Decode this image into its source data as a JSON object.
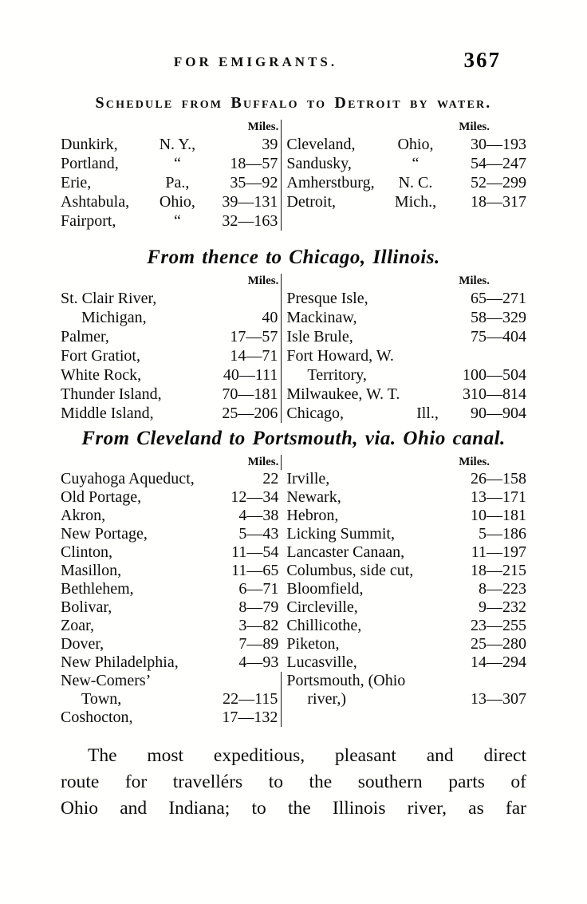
{
  "header": {
    "running_title": "FOR EMIGRANTS.",
    "page_number": "367"
  },
  "sections": [
    {
      "title": "Schedule from Buffalo to Detroit by water.",
      "miles_left": "Miles.",
      "miles_right": "Miles.",
      "rows": [
        {
          "l": {
            "place": "Dunkirk,",
            "state": "N. Y.,",
            "miles": "39"
          },
          "r": {
            "place": "Cleveland,",
            "state": "Ohio,",
            "miles": "30—193"
          }
        },
        {
          "l": {
            "place": "Portland,",
            "state": "“",
            "miles": "18—57"
          },
          "r": {
            "place": "Sandusky,",
            "state": "“",
            "miles": "54—247"
          }
        },
        {
          "l": {
            "place": "Erie,",
            "state": "Pa.,",
            "miles": "35—92"
          },
          "r": {
            "place": "Amherstburg,",
            "state": "N. C.",
            "miles": "52—299"
          }
        },
        {
          "l": {
            "place": "Ashtabula,",
            "state": "Ohio,",
            "miles": "39—131"
          },
          "r": {
            "place": "Detroit,",
            "state": "Mich.,",
            "miles": "18—317"
          }
        },
        {
          "l": {
            "place": "Fairport,",
            "state": "“",
            "miles": "32—163"
          },
          "r": {}
        }
      ]
    },
    {
      "title": "From thence to Chicago, Illinois.",
      "miles_left": "Miles.",
      "miles_right": "Miles.",
      "rows": [
        {
          "l": {
            "place": "St. Clair River,",
            "miles": ""
          },
          "r": {
            "place": "Presque Isle,",
            "miles": "65—271"
          }
        },
        {
          "l": {
            "place": "Michigan,",
            "indent": true,
            "miles": "40"
          },
          "r": {
            "place": "Mackinaw,",
            "miles": "58—329"
          }
        },
        {
          "l": {
            "place": "Palmer,",
            "miles": "17—57"
          },
          "r": {
            "place": "Isle Brule,",
            "miles": "75—404"
          }
        },
        {
          "l": {
            "place": "Fort Gratiot,",
            "miles": "14—71"
          },
          "r": {
            "place": "Fort Howard, W.",
            "miles": ""
          }
        },
        {
          "l": {
            "place": "White Rock,",
            "miles": "40—111"
          },
          "r": {
            "place": "Territory,",
            "indent": true,
            "miles": "100—504"
          }
        },
        {
          "l": {
            "place": "Thunder Island,",
            "miles": "70—181"
          },
          "r": {
            "place": "Milwaukee, W. T.",
            "miles": "310—814"
          }
        },
        {
          "l": {
            "place": "Middle Island,",
            "miles": "25—206"
          },
          "r": {
            "place": "Chicago,",
            "state": "Ill.,",
            "miles": "90—904"
          }
        }
      ]
    },
    {
      "title": "From Cleveland to Portsmouth, via. Ohio canal.",
      "miles_left": "Miles.",
      "miles_right": "Miles.",
      "rows": [
        {
          "l": {
            "place": "Cuyahoga Aqueduct,",
            "miles": "22"
          },
          "r": {
            "place": "Irville,",
            "miles": "26—158"
          }
        },
        {
          "l": {
            "place": "Old Portage,",
            "miles": "12—34"
          },
          "r": {
            "place": "Newark,",
            "miles": "13—171"
          }
        },
        {
          "l": {
            "place": "Akron,",
            "miles": "4—38"
          },
          "r": {
            "place": "Hebron,",
            "miles": "10—181"
          }
        },
        {
          "l": {
            "place": "New Portage,",
            "miles": "5—43"
          },
          "r": {
            "place": "Licking Summit,",
            "miles": "5—186"
          }
        },
        {
          "l": {
            "place": "Clinton,",
            "miles": "11—54"
          },
          "r": {
            "place": "Lancaster Canaan,",
            "miles": "11—197"
          }
        },
        {
          "l": {
            "place": "Masillon,",
            "miles": "11—65"
          },
          "r": {
            "place": "Columbus, side cut,",
            "miles": "18—215"
          }
        },
        {
          "l": {
            "place": "Bethlehem,",
            "miles": "6—71"
          },
          "r": {
            "place": "Bloomfield,",
            "miles": "8—223"
          }
        },
        {
          "l": {
            "place": "Bolivar,",
            "miles": "8—79"
          },
          "r": {
            "place": "Circleville,",
            "miles": "9—232"
          }
        },
        {
          "l": {
            "place": "Zoar,",
            "miles": "3—82"
          },
          "r": {
            "place": "Chillicothe,",
            "miles": "23—255"
          }
        },
        {
          "l": {
            "place": "Dover,",
            "miles": "7—89"
          },
          "r": {
            "place": "Piketon,",
            "miles": "25—280"
          }
        },
        {
          "l": {
            "place": "New Philadelphia,",
            "miles": "4—93"
          },
          "r": {
            "place": "Lucasville,",
            "miles": "14—294"
          }
        },
        {
          "l": {
            "place": "New-Comers’",
            "miles": ""
          },
          "r": {
            "place": "Portsmouth, (Ohio",
            "miles": ""
          }
        },
        {
          "l": {
            "place": "Town,",
            "indent": true,
            "miles": "22—115"
          },
          "r": {
            "place": "river,)",
            "indent": true,
            "miles": "13—307"
          }
        },
        {
          "l": {
            "place": "Coshocton,",
            "miles": "17—132"
          },
          "r": {}
        }
      ]
    }
  ],
  "paragraph": {
    "lines": [
      "The most expeditious, pleasant and direct",
      "route for travellérs to the southern parts of",
      "Ohio and Indiana; to the Illinois river, as far"
    ]
  }
}
